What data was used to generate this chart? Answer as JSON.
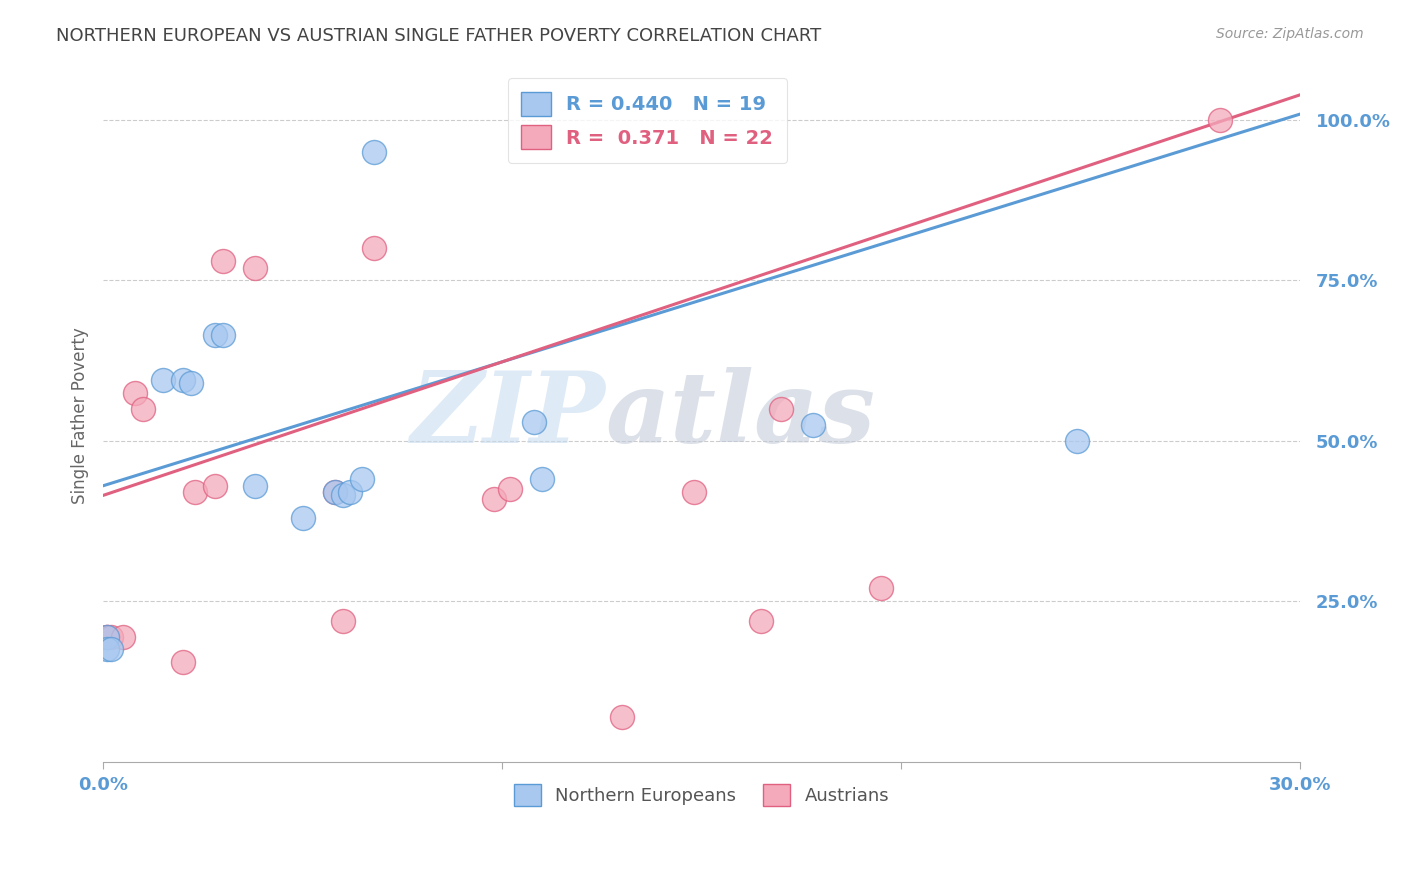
{
  "title": "NORTHERN EUROPEAN VS AUSTRIAN SINGLE FATHER POVERTY CORRELATION CHART",
  "source": "Source: ZipAtlas.com",
  "ylabel": "Single Father Poverty",
  "watermark_zip": "ZIP",
  "watermark_atlas": "atlas",
  "xlim": [
    0.0,
    0.3
  ],
  "ylim": [
    0.0,
    1.08
  ],
  "ne_color": "#A8C8F0",
  "au_color": "#F4AABB",
  "ne_line_color": "#5B9BD5",
  "au_line_color": "#E06080",
  "ne_R": 0.44,
  "ne_N": 19,
  "au_R": 0.371,
  "au_N": 22,
  "ne_intercept": 0.43,
  "ne_slope": 1.93,
  "au_intercept": 0.415,
  "au_slope": 2.08,
  "ne_x": [
    0.001,
    0.001,
    0.002,
    0.015,
    0.02,
    0.022,
    0.028,
    0.03,
    0.038,
    0.05,
    0.058,
    0.06,
    0.062,
    0.065,
    0.068,
    0.108,
    0.11,
    0.178,
    0.244
  ],
  "ne_y": [
    0.195,
    0.175,
    0.175,
    0.595,
    0.595,
    0.59,
    0.665,
    0.665,
    0.43,
    0.38,
    0.42,
    0.415,
    0.42,
    0.44,
    0.95,
    0.53,
    0.44,
    0.525,
    0.5
  ],
  "au_x": [
    0.001,
    0.001,
    0.002,
    0.005,
    0.008,
    0.01,
    0.02,
    0.023,
    0.028,
    0.03,
    0.038,
    0.058,
    0.06,
    0.068,
    0.098,
    0.102,
    0.13,
    0.148,
    0.165,
    0.17,
    0.195,
    0.28
  ],
  "au_y": [
    0.195,
    0.195,
    0.195,
    0.195,
    0.575,
    0.55,
    0.155,
    0.42,
    0.43,
    0.78,
    0.77,
    0.42,
    0.22,
    0.8,
    0.41,
    0.425,
    0.07,
    0.42,
    0.22,
    0.55,
    0.27,
    1.0
  ],
  "background_color": "#FFFFFF",
  "grid_color": "#CCCCCC",
  "tick_color": "#5B9BD5",
  "title_color": "#444444",
  "axis_color": "#AAAAAA"
}
